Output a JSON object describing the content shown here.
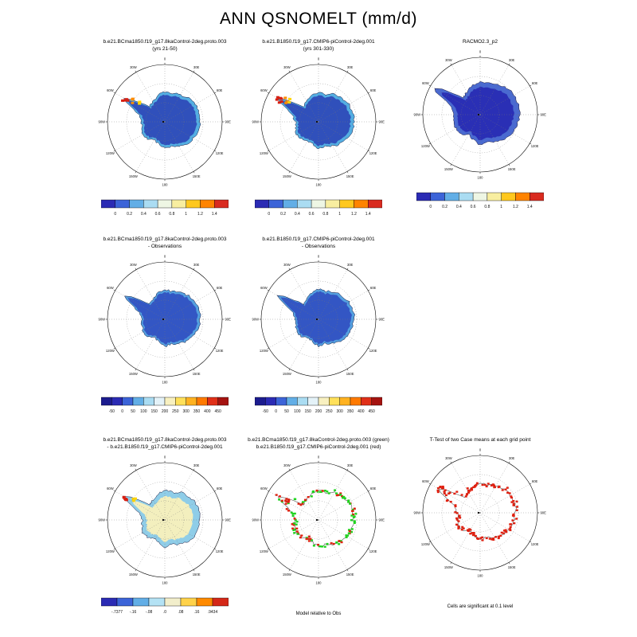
{
  "title": "ANN QSNOMELT (mm/d)",
  "grid_labels": [
    "0",
    "30E",
    "60E",
    "90E",
    "120E",
    "150E",
    "180",
    "150W",
    "120W",
    "90W",
    "60W",
    "30W"
  ],
  "captions": {
    "model_rel_obs": "Model relative to Obs",
    "ttest_sig": "Cells are significant at 0.1 level"
  },
  "colorbars": {
    "melt": {
      "colors": [
        "#2b2bb4",
        "#3c64d8",
        "#62aee6",
        "#aadcf2",
        "#eef6e4",
        "#f8eea0",
        "#ffc81e",
        "#ff8400",
        "#d92b20"
      ],
      "ticks": [
        "0",
        "0.2",
        "0.4",
        "0.6",
        "0.8",
        "1",
        "1.2",
        "1.4"
      ]
    },
    "diff_obs": {
      "colors": [
        "#1c1c8f",
        "#2b2bb4",
        "#3c64d8",
        "#62aee6",
        "#aadcf2",
        "#e4f2f8",
        "#f8f0c0",
        "#ffe05a",
        "#ffb220",
        "#ff7a00",
        "#e03018",
        "#a51310"
      ],
      "ticks": [
        "-50",
        "0",
        "50",
        "100",
        "150",
        "200",
        "250",
        "300",
        "350",
        "400",
        "450"
      ]
    },
    "diff_case": {
      "colors": [
        "#2b2bb4",
        "#3c64d8",
        "#62aee6",
        "#b4e2f4",
        "#f2eecb",
        "#ffd24a",
        "#ff8a00",
        "#d42818"
      ],
      "ticks": [
        "-.7377",
        "-.16",
        "-.08",
        ".0",
        ".08",
        ".16",
        ".9434"
      ]
    }
  },
  "panels": [
    {
      "title1": "b.e21.BCma1850.f19_g17.8kaControl-2deg.proto.003",
      "title2": "(yrs 21-50)",
      "map": {
        "mode": "fill",
        "ring": "#54aee2",
        "base": "#3050bb",
        "inner": 0.9,
        "accents": [
          "#d81e10",
          "#ff8c00",
          "#ffd400"
        ]
      }
    },
    {
      "title1": "b.e21.B1850.f19_g17.CMIP6-piControl-2deg.001",
      "title2": "(yrs 301-330)",
      "map": {
        "mode": "fill",
        "ring": "#54aee2",
        "base": "#3050bb",
        "inner": 0.9,
        "accents": [
          "#d81e10",
          "#ff8c00",
          "#ffd400"
        ]
      }
    },
    {
      "title1": "",
      "title2": "RACMO2.3_p2",
      "map": {
        "mode": "fill",
        "ring": "#4a6ad0",
        "base": "#2a2fb5",
        "inner": 0.85,
        "scale": 1.12
      }
    },
    {
      "title1": "b.e21.BCma1850.f19_g17.8kaControl-2deg.proto.003",
      "title2": "- Observations",
      "map": {
        "mode": "fill",
        "ring": "#54a0e0",
        "base": "#3356c4",
        "inner": 0.92
      }
    },
    {
      "title1": "b.e21.B1850.f19_g17.CMIP6-piControl-2deg.001",
      "title2": "- Observations",
      "map": {
        "mode": "fill",
        "ring": "#54a0e0",
        "base": "#3356c4",
        "inner": 0.92
      }
    },
    {
      "title1": "b.e21.BCma1850.f19_g17.8kaControl-2deg.proto.003",
      "title2": "- b.e21.B1850.f19_g17.CMIP6-piControl-2deg.001",
      "map": {
        "mode": "fill",
        "ring": "#8fcde8",
        "base": "#f3efbe",
        "inner": 0.8,
        "accents": [
          "#d81e10",
          "#ffd400"
        ]
      }
    },
    {
      "title1": "b.e21.BCma1850.f19_g17.8kaControl-2deg.proto.003 (green)",
      "title2": "b.e21.B1850.f19_g17.CMIP6-piControl-2deg.001 (red)",
      "map": {
        "mode": "cells",
        "cell_colors": [
          "#1fd41f",
          "#e02010"
        ]
      }
    },
    {
      "title1": "",
      "title2": "T-Test of two Case means at each grid point",
      "map": {
        "mode": "cells",
        "cell_colors": [
          "#e02010"
        ]
      }
    }
  ],
  "chart_data": {
    "type": "heatmap",
    "subtype": "polar_stereographic_antarctica_map_grid",
    "variable": "QSNOMELT",
    "season": "ANN",
    "units": "mm/d",
    "title": "ANN QSNOMELT (mm/d)",
    "panels": [
      {
        "row": 1,
        "col": 1,
        "case": "b.e21.BCma1850.f19_g17.8kaControl-2deg.proto.003",
        "years": "yrs 21-50",
        "scale_ticks": [
          0,
          0.2,
          0.4,
          0.6,
          0.8,
          1,
          1.2,
          1.4
        ]
      },
      {
        "row": 1,
        "col": 2,
        "case": "b.e21.B1850.f19_g17.CMIP6-piControl-2deg.001",
        "years": "yrs 301-330",
        "scale_ticks": [
          0,
          0.2,
          0.4,
          0.6,
          0.8,
          1,
          1.2,
          1.4
        ]
      },
      {
        "row": 1,
        "col": 3,
        "case": "RACMO2.3_p2",
        "scale_ticks": [
          0,
          0.2,
          0.4,
          0.6,
          0.8,
          1,
          1.2,
          1.4
        ]
      },
      {
        "row": 2,
        "col": 1,
        "case": "b.e21.BCma1850.f19_g17.8kaControl-2deg.proto.003 - Observations",
        "scale_ticks": [
          -50,
          0,
          50,
          100,
          150,
          200,
          250,
          300,
          350,
          400,
          450
        ]
      },
      {
        "row": 2,
        "col": 2,
        "case": "b.e21.B1850.f19_g17.CMIP6-piControl-2deg.001 - Observations",
        "scale_ticks": [
          -50,
          0,
          50,
          100,
          150,
          200,
          250,
          300,
          350,
          400,
          450
        ]
      },
      {
        "row": 3,
        "col": 1,
        "case": "b.e21.BCma1850.f19_g17.8kaControl-2deg.proto.003 - b.e21.B1850.f19_g17.CMIP6-piControl-2deg.001",
        "scale_ticks": [
          -0.7377,
          -0.16,
          -0.08,
          0,
          0.08,
          0.16,
          0.9434
        ]
      },
      {
        "row": 3,
        "col": 2,
        "case": "Model relative to Obs",
        "legend": {
          "green": "b.e21.BCma1850.f19_g17.8kaControl-2deg.proto.003",
          "red": "b.e21.B1850.f19_g17.CMIP6-piControl-2deg.001"
        }
      },
      {
        "row": 3,
        "col": 3,
        "case": "T-Test of two Case means at each grid point",
        "note": "Cells are significant at 0.1 level"
      }
    ]
  }
}
